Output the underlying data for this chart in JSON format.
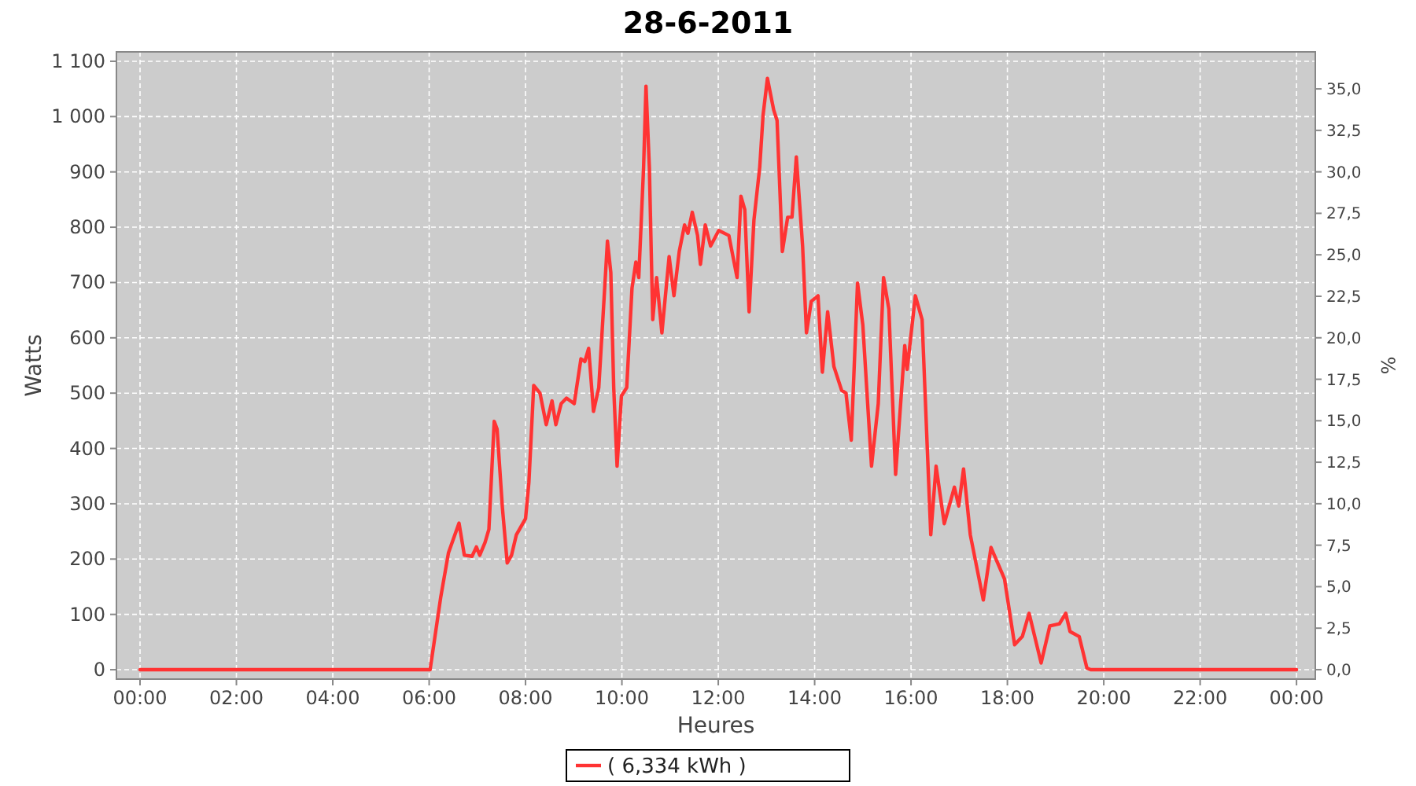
{
  "chart_data": {
    "type": "line",
    "title": "28-6-2011",
    "xlabel": "Heures",
    "ylabel": "Watts",
    "y2label": "%",
    "x": [
      0,
      6.02,
      6.24,
      6.4,
      6.62,
      6.73,
      6.89,
      6.98,
      7.05,
      7.16,
      7.24,
      7.35,
      7.41,
      7.52,
      7.62,
      7.71,
      7.81,
      8.0,
      8.07,
      8.17,
      8.3,
      8.43,
      8.55,
      8.63,
      8.74,
      8.85,
      9.01,
      9.15,
      9.23,
      9.31,
      9.41,
      9.52,
      9.61,
      9.7,
      9.77,
      9.83,
      9.9,
      9.99,
      10.1,
      10.21,
      10.29,
      10.35,
      10.45,
      10.5,
      10.57,
      10.64,
      10.72,
      10.83,
      10.98,
      11.08,
      11.19,
      11.3,
      11.37,
      11.46,
      11.57,
      11.63,
      11.73,
      11.84,
      12.01,
      12.22,
      12.39,
      12.47,
      12.55,
      12.64,
      12.74,
      12.86,
      12.93,
      13.02,
      13.15,
      13.22,
      13.33,
      13.44,
      13.53,
      13.62,
      13.75,
      13.83,
      13.93,
      14.07,
      14.16,
      14.27,
      14.4,
      14.56,
      14.65,
      14.76,
      14.89,
      15.0,
      15.18,
      15.32,
      15.43,
      15.54,
      15.68,
      15.87,
      15.92,
      16.09,
      16.23,
      16.41,
      16.52,
      16.69,
      16.9,
      16.99,
      17.09,
      17.23,
      17.5,
      17.66,
      17.94,
      18.15,
      18.31,
      18.45,
      18.7,
      18.88,
      19.08,
      19.21,
      19.3,
      19.49,
      19.65,
      19.73,
      24
    ],
    "series": [
      {
        "name": "( 6,334 kWh )",
        "color": "#ff3333",
        "values": [
          0,
          0,
          131,
          211,
          265,
          207,
          205,
          222,
          207,
          230,
          254,
          449,
          435,
          293,
          193,
          207,
          244,
          273,
          339,
          514,
          500,
          443,
          486,
          443,
          481,
          491,
          481,
          562,
          557,
          581,
          467,
          510,
          642,
          775,
          718,
          510,
          368,
          495,
          510,
          690,
          737,
          709,
          908,
          1055,
          908,
          633,
          709,
          609,
          747,
          676,
          756,
          804,
          789,
          827,
          785,
          733,
          804,
          766,
          794,
          785,
          709,
          856,
          832,
          647,
          813,
          908,
          1003,
          1069,
          1012,
          993,
          756,
          818,
          818,
          927,
          766,
          609,
          666,
          676,
          538,
          647,
          548,
          505,
          500,
          415,
          699,
          623,
          368,
          481,
          709,
          652,
          353,
          586,
          543,
          676,
          633,
          244,
          368,
          264,
          330,
          296,
          363,
          244,
          126,
          221,
          164,
          45,
          60,
          102,
          12,
          79,
          83,
          102,
          69,
          60,
          3,
          0,
          0
        ]
      }
    ],
    "xlim": [
      -0.49,
      24.39
    ],
    "xticks": [
      {
        "value": 0,
        "label": "00:00"
      },
      {
        "value": 2,
        "label": "02:00"
      },
      {
        "value": 4,
        "label": "04:00"
      },
      {
        "value": 6,
        "label": "06:00"
      },
      {
        "value": 8,
        "label": "08:00"
      },
      {
        "value": 10,
        "label": "10:00"
      },
      {
        "value": 12,
        "label": "12:00"
      },
      {
        "value": 14,
        "label": "14:00"
      },
      {
        "value": 16,
        "label": "16:00"
      },
      {
        "value": 18,
        "label": "18:00"
      },
      {
        "value": 20,
        "label": "20:00"
      },
      {
        "value": 22,
        "label": "22:00"
      },
      {
        "value": 24,
        "label": "00:00"
      }
    ],
    "ylim": [
      -17,
      1117
    ],
    "yticks": [
      0,
      100,
      200,
      300,
      400,
      500,
      600,
      700,
      800,
      900,
      {
        "value": 1000,
        "label": "1 000"
      },
      {
        "value": 1100,
        "label": "1 100"
      }
    ],
    "y2lim": [
      -0.57,
      37.23
    ],
    "y2ticks": [
      {
        "value": 0,
        "label": "0,0"
      },
      {
        "value": 2.5,
        "label": "2,5"
      },
      {
        "value": 5,
        "label": "5,0"
      },
      {
        "value": 7.5,
        "label": "7,5"
      },
      {
        "value": 10,
        "label": "10,0"
      },
      {
        "value": 12.5,
        "label": "12,5"
      },
      {
        "value": 15,
        "label": "15,0"
      },
      {
        "value": 17.5,
        "label": "17,5"
      },
      {
        "value": 20,
        "label": "20,0"
      },
      {
        "value": 22.5,
        "label": "22,5"
      },
      {
        "value": 25,
        "label": "25,0"
      },
      {
        "value": 27.5,
        "label": "27,5"
      },
      {
        "value": 30,
        "label": "30,0"
      },
      {
        "value": 32.5,
        "label": "32,5"
      },
      {
        "value": 35,
        "label": "35,0"
      }
    ],
    "grid": true,
    "legend": "bottom",
    "marker": "none",
    "line_style": "solid"
  }
}
